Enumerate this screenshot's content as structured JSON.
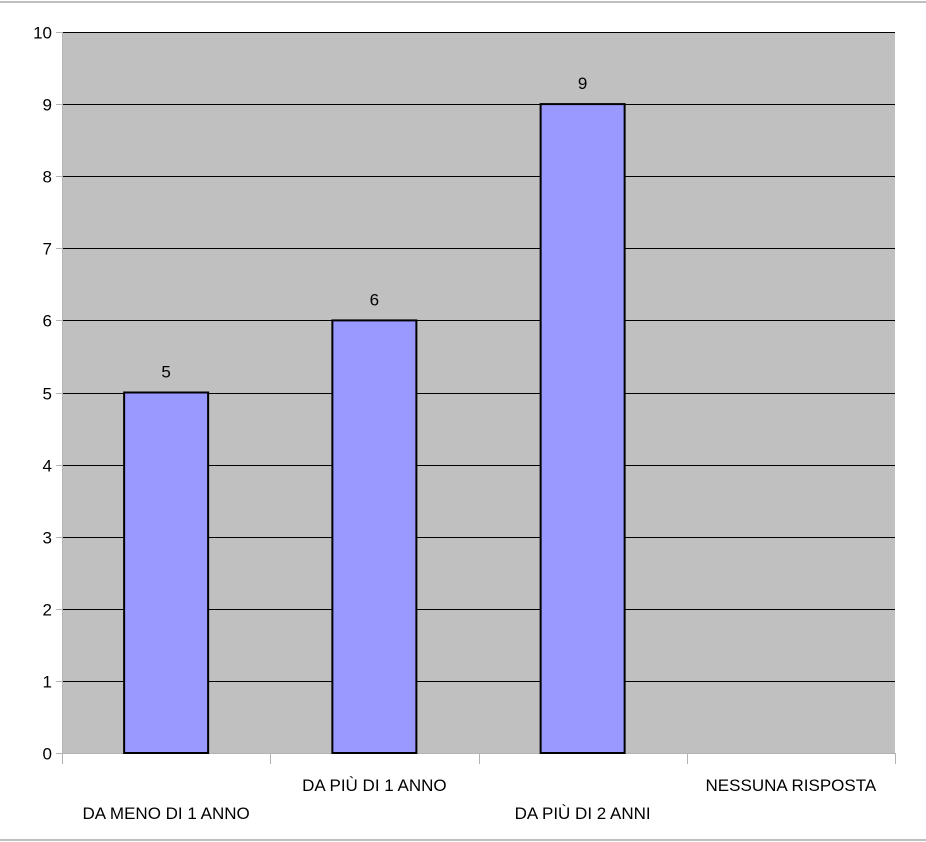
{
  "chart_data": {
    "type": "bar",
    "title": "",
    "xlabel": "",
    "ylabel": "",
    "categories": [
      "DA MENO DI 1 ANNO",
      "DA PIÙ DI 1 ANNO",
      "DA PIÙ DI 2 ANNI",
      "NESSUNA RISPOSTA"
    ],
    "values": [
      5,
      6,
      9,
      null
    ],
    "data_labels": [
      "5",
      "6",
      "9",
      ""
    ],
    "ylim": [
      0,
      10
    ],
    "yticks": [
      0,
      1,
      2,
      3,
      4,
      5,
      6,
      7,
      8,
      9,
      10
    ],
    "grid": true,
    "legend": "none",
    "colors": {
      "plot_background": "#c0c0c0",
      "bar_fill": "#9999ff",
      "bar_stroke": "#000000",
      "grid_line": "#000000",
      "axis_line": "#b3b3b3",
      "page_border": "#808080"
    }
  }
}
